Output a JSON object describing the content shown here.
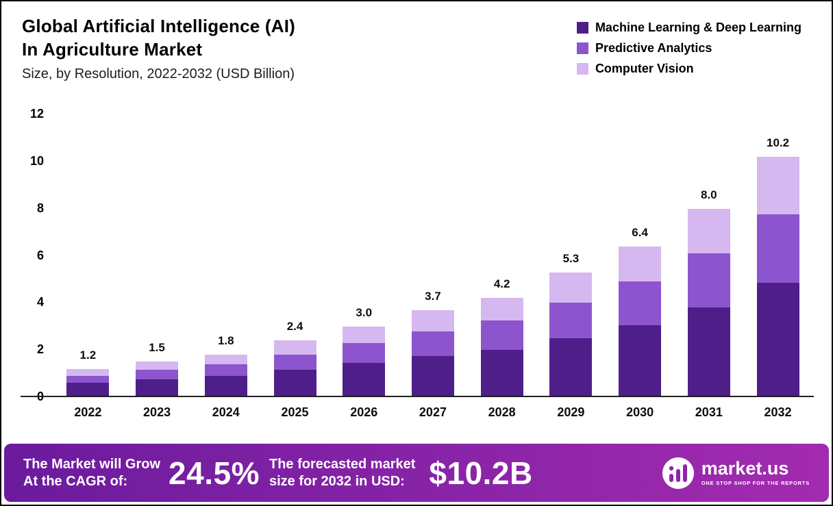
{
  "title": {
    "line1": "Global Artificial Intelligence (AI)",
    "line2": "In Agriculture Market",
    "subtitle": "Size, by Resolution, 2022-2032 (USD Billion)"
  },
  "colors": {
    "ml_deep_learning": "#4e1e89",
    "predictive_analytics": "#8d55cd",
    "computer_vision": "#d6b8f0",
    "banner_gradient_left": "#6b1b9d",
    "banner_gradient_right": "#a32bb0"
  },
  "legend": [
    {
      "label": "Machine Learning & Deep Learning",
      "color": "#4e1e89"
    },
    {
      "label": "Predictive Analytics",
      "color": "#8d55cd"
    },
    {
      "label": "Computer Vision",
      "color": "#d6b8f0"
    }
  ],
  "chart_data": {
    "type": "bar",
    "stacked": true,
    "title": "Global Artificial Intelligence (AI) In Agriculture Market Size, by Resolution, 2022-2032 (USD Billion)",
    "xlabel": "",
    "ylabel": "USD Billion",
    "categories": [
      "2022",
      "2023",
      "2024",
      "2025",
      "2026",
      "2027",
      "2028",
      "2029",
      "2030",
      "2031",
      "2032"
    ],
    "series": [
      {
        "name": "Machine Learning & Deep Learning",
        "color": "#4e1e89",
        "values": [
          0.6,
          0.75,
          0.9,
          1.15,
          1.45,
          1.75,
          2.0,
          2.5,
          3.05,
          3.8,
          4.85
        ]
      },
      {
        "name": "Predictive Analytics",
        "color": "#8d55cd",
        "values": [
          0.3,
          0.4,
          0.5,
          0.65,
          0.85,
          1.05,
          1.25,
          1.5,
          1.85,
          2.3,
          2.9
        ]
      },
      {
        "name": "Computer Vision",
        "color": "#d6b8f0",
        "values": [
          0.3,
          0.35,
          0.4,
          0.6,
          0.7,
          0.9,
          0.95,
          1.3,
          1.5,
          1.9,
          2.45
        ]
      }
    ],
    "totals": [
      1.2,
      1.5,
      1.8,
      2.4,
      3.0,
      3.7,
      4.2,
      5.3,
      6.4,
      8.0,
      10.2
    ],
    "total_labels": [
      "1.2",
      "1.5",
      "1.8",
      "2.4",
      "3.0",
      "3.7",
      "4.2",
      "5.3",
      "6.4",
      "8.0",
      "10.2"
    ],
    "ylim": [
      0,
      12
    ],
    "yticks": [
      0,
      2,
      4,
      6,
      8,
      10,
      12
    ],
    "grid": false,
    "legend_position": "top-right"
  },
  "banner": {
    "cagr_label_line1": "The Market will Grow",
    "cagr_label_line2": "At the CAGR of:",
    "cagr_value": "24.5%",
    "forecast_label_line1": "The forecasted market",
    "forecast_label_line2": "size for 2032 in USD:",
    "forecast_value": "$10.2B",
    "brand": {
      "name": "market.us",
      "tagline": "ONE STOP SHOP FOR THE REPORTS"
    }
  }
}
